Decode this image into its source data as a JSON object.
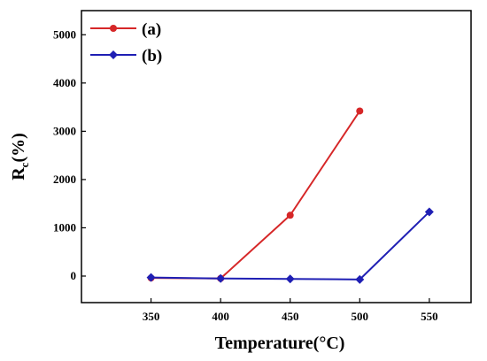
{
  "chart_data": {
    "type": "line",
    "x": [
      350,
      400,
      450,
      500,
      550
    ],
    "xlabel": "Temperature(°C)",
    "ylabel_main": "R",
    "ylabel_sub": "c",
    "ylabel_rest": "(%)",
    "xlim": [
      300,
      580
    ],
    "ylim": [
      -550,
      5500
    ],
    "xticks": [
      350,
      400,
      450,
      500,
      550
    ],
    "yticks": [
      0,
      1000,
      2000,
      3000,
      4000,
      5000
    ],
    "grid": false,
    "legend_position": "top-left",
    "series": [
      {
        "name": "(a)",
        "color": "#d62728",
        "marker": "circle",
        "points": [
          [
            350,
            -40
          ],
          [
            400,
            -50
          ],
          [
            450,
            1260
          ],
          [
            500,
            3420
          ]
        ]
      },
      {
        "name": "(b)",
        "color": "#1f1fb4",
        "marker": "diamond",
        "points": [
          [
            350,
            -30
          ],
          [
            400,
            -50
          ],
          [
            450,
            -60
          ],
          [
            500,
            -70
          ],
          [
            550,
            1330
          ]
        ]
      }
    ]
  }
}
